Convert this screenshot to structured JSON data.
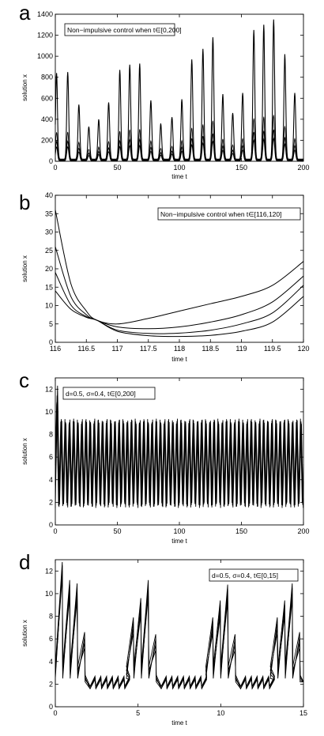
{
  "figure": {
    "panels": [
      {
        "letter": "a"
      },
      {
        "letter": "b"
      },
      {
        "letter": "c"
      },
      {
        "letter": "d"
      }
    ]
  },
  "chart_data": [
    {
      "type": "line",
      "panel": "a",
      "xlabel": "time t",
      "ylabel": "solution x",
      "xlim": [
        0,
        200
      ],
      "ylim": [
        0,
        1400
      ],
      "xticks": [
        0,
        50,
        100,
        150,
        200
      ],
      "yticks": [
        0,
        200,
        400,
        600,
        800,
        1000,
        1200,
        1400
      ],
      "legend_text": "Non−impulsive control when t∈[0,200]",
      "legend_position": "top-left",
      "grid": false,
      "peaks": {
        "times": [
          1,
          10,
          19,
          27,
          35,
          43,
          52,
          60,
          68,
          77,
          85,
          94,
          102,
          110,
          119,
          127,
          135,
          143,
          151,
          160,
          168,
          176,
          185,
          193
        ],
        "heights": [
          820,
          830,
          520,
          310,
          380,
          540,
          850,
          900,
          910,
          560,
          340,
          400,
          570,
          950,
          1050,
          1160,
          620,
          440,
          630,
          1230,
          1280,
          1330,
          1000,
          630
        ]
      }
    },
    {
      "type": "line",
      "panel": "b",
      "xlabel": "time t",
      "ylabel": "solution x",
      "xlim": [
        116,
        120
      ],
      "ylim": [
        0,
        40
      ],
      "xticks": [
        116,
        116.5,
        117,
        117.5,
        118,
        118.5,
        119,
        119.5,
        120
      ],
      "yticks": [
        0,
        5,
        10,
        15,
        20,
        25,
        30,
        35,
        40
      ],
      "legend_text": "Non−impulsive control when t∈[116,120]",
      "legend_position": "top-right",
      "grid": false,
      "series": [
        {
          "x": [
            116,
            116.25,
            116.5,
            116.67,
            117,
            117.5,
            118,
            118.5,
            119,
            119.5,
            120
          ],
          "y": [
            36,
            16,
            8.5,
            6,
            5,
            6.5,
            8.5,
            10.5,
            12.5,
            15.5,
            22
          ]
        },
        {
          "x": [
            116,
            116.25,
            116.5,
            116.67,
            117,
            117.5,
            118,
            118.5,
            119,
            119.5,
            120
          ],
          "y": [
            26,
            12.5,
            7.5,
            6,
            4.2,
            3.7,
            4.2,
            5.5,
            7.5,
            11,
            18
          ]
        },
        {
          "x": [
            116,
            116.25,
            116.5,
            116.67,
            117,
            117.5,
            118,
            118.5,
            119,
            119.5,
            120
          ],
          "y": [
            19,
            10.2,
            7,
            6,
            3.3,
            2.4,
            2.5,
            3.3,
            5,
            8,
            15.5
          ]
        },
        {
          "x": [
            116,
            116.25,
            116.5,
            116.67,
            117,
            117.5,
            118,
            118.5,
            119,
            119.5,
            120
          ],
          "y": [
            14,
            9,
            6.8,
            6,
            3,
            1.8,
            1.6,
            1.9,
            3,
            5.5,
            12.5
          ]
        }
      ]
    },
    {
      "type": "line",
      "panel": "c",
      "xlabel": "time t",
      "ylabel": "solution x",
      "xlim": [
        0,
        200
      ],
      "ylim": [
        0,
        13
      ],
      "xticks": [
        0,
        50,
        100,
        150,
        200
      ],
      "yticks": [
        0,
        2,
        4,
        6,
        8,
        10,
        12
      ],
      "legend_text": "d=0.5,  σ=0.4, t∈[0,200]",
      "legend_position": "top-left",
      "grid": false,
      "oscillation": {
        "period": 3.33,
        "min": 1.5,
        "max": 9.4,
        "initial_max": 12.5
      }
    },
    {
      "type": "line",
      "panel": "d",
      "xlabel": "time t",
      "ylabel": "solution x",
      "xlim": [
        0,
        15
      ],
      "ylim": [
        0,
        13
      ],
      "xticks": [
        0,
        5,
        10,
        15
      ],
      "yticks": [
        0,
        2,
        4,
        6,
        8,
        10,
        12
      ],
      "legend_text": "d=0.5,  σ=0.4, t∈[0,15]",
      "legend_position": "top-right",
      "grid": false,
      "bursts": [
        {
          "start": 0,
          "peaks": [
            12.5,
            10.8,
            10.5,
            6.2
          ]
        },
        {
          "start": 4.3,
          "peaks": [
            7.5,
            9.2,
            10.8,
            6.0
          ]
        },
        {
          "start": 9.1,
          "peaks": [
            7.5,
            9.0,
            10.4,
            6.0
          ]
        },
        {
          "start": 13.0,
          "peaks": [
            7.5,
            9.0,
            10.5,
            6.2
          ]
        }
      ]
    }
  ]
}
